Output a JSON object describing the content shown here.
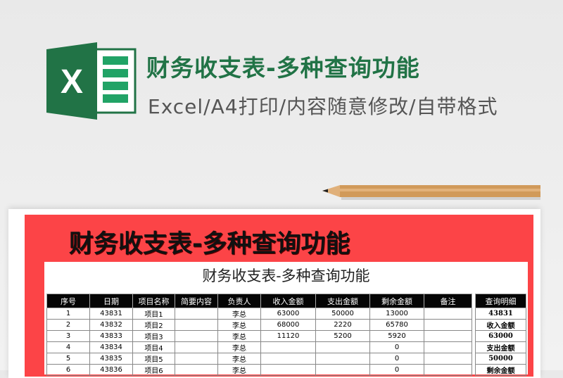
{
  "header": {
    "title": "财务收支表-多种查询功能",
    "subtitle": "Excel/A4打印/内容随意修改/自带格式",
    "logo_letter": "X"
  },
  "colors": {
    "brand": "#217346",
    "banner": "#fc4447"
  },
  "banner": {
    "title": "财务收支表-多种查询功能"
  },
  "sheet": {
    "title": "财务收支表-多种查询功能",
    "columns": [
      "序号",
      "日期",
      "项目名称",
      "简要内容",
      "负责人",
      "收入金额",
      "支出金额",
      "剩余金额",
      "备注"
    ],
    "rows": [
      [
        "1",
        "43831",
        "项目1",
        "",
        "李总",
        "63000",
        "50000",
        "13000",
        ""
      ],
      [
        "2",
        "43832",
        "项目2",
        "",
        "李总",
        "68000",
        "2220",
        "65780",
        ""
      ],
      [
        "3",
        "43833",
        "项目3",
        "",
        "李总",
        "11120",
        "5200",
        "5920",
        ""
      ],
      [
        "4",
        "43834",
        "项目4",
        "",
        "李总",
        "",
        "",
        "0",
        ""
      ],
      [
        "5",
        "43835",
        "项目5",
        "",
        "李总",
        "",
        "",
        "0",
        ""
      ],
      [
        "6",
        "43836",
        "项目6",
        "",
        "李总",
        "",
        "",
        "0",
        ""
      ]
    ]
  },
  "query": {
    "header": "查询明细",
    "cells": [
      "43831",
      "收入金额",
      "63000",
      "支出金额",
      "50000",
      "剩余金额"
    ]
  }
}
